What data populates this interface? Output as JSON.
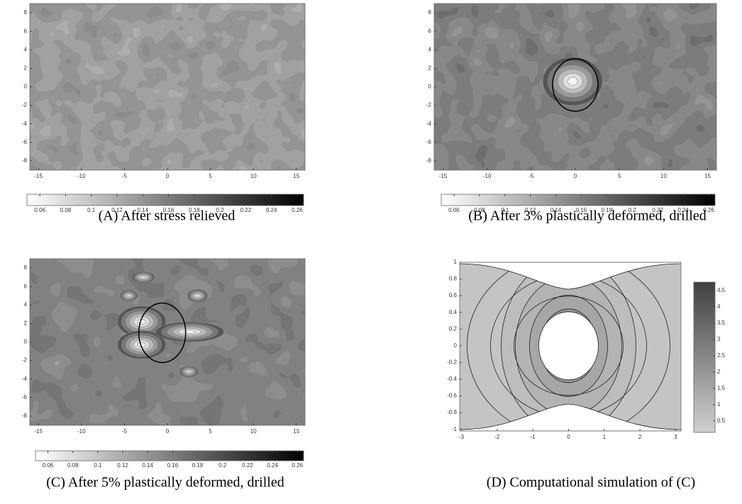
{
  "chart_data": [
    {
      "type": "contour",
      "title": "(A) After stress relieved",
      "xlim": [
        -16,
        16
      ],
      "ylim": [
        -9,
        9
      ],
      "xticks": [
        -15,
        -10,
        -5,
        0,
        5,
        10,
        15
      ],
      "yticks": [
        -8,
        -6,
        -4,
        -2,
        0,
        2,
        4,
        6,
        8
      ],
      "colorbar": {
        "orientation": "horizontal",
        "clim": [
          0.05,
          0.265
        ],
        "ticks": [
          0.06,
          0.08,
          0.1,
          0.12,
          0.14,
          0.16,
          0.18,
          0.2,
          0.22,
          0.24,
          0.26
        ]
      }
    },
    {
      "type": "contour",
      "title": "(B) After 3% plastically deformed, drilled",
      "xlim": [
        -16,
        16
      ],
      "ylim": [
        -9,
        9
      ],
      "xticks": [
        -15,
        -10,
        -5,
        0,
        5,
        10,
        15
      ],
      "yticks": [
        -8,
        -6,
        -4,
        -2,
        0,
        2,
        4,
        6,
        8
      ],
      "colorbar": {
        "orientation": "horizontal",
        "clim": [
          0.05,
          0.265
        ],
        "ticks": [
          0.06,
          0.08,
          0.1,
          0.12,
          0.14,
          0.16,
          0.18,
          0.2,
          0.22,
          0.24,
          0.26
        ]
      }
    },
    {
      "type": "contour",
      "title": "(C) After 5% plastically deformed, drilled",
      "xlim": [
        -16,
        16
      ],
      "ylim": [
        -9,
        9
      ],
      "xticks": [
        -15,
        -10,
        -5,
        0,
        5,
        10,
        15
      ],
      "yticks": [
        -8,
        -6,
        -4,
        -2,
        0,
        2,
        4,
        6,
        8
      ],
      "colorbar": {
        "orientation": "horizontal",
        "clim": [
          0.05,
          0.265
        ],
        "ticks": [
          0.06,
          0.08,
          0.1,
          0.12,
          0.14,
          0.16,
          0.18,
          0.2,
          0.22,
          0.24,
          0.26
        ]
      }
    },
    {
      "type": "contour",
      "title": "(D) Computational simulation of (C)",
      "xlim": [
        -3.05,
        3.15
      ],
      "ylim": [
        -1.02,
        1.0
      ],
      "xticks": [
        -3,
        -2,
        -1,
        0,
        1,
        2,
        3
      ],
      "yticks": [
        -1,
        -0.8,
        -0.6,
        -0.4,
        -0.2,
        0,
        0.2,
        0.4,
        0.6,
        0.8,
        1
      ],
      "colorbar": {
        "orientation": "vertical",
        "clim": [
          0.15,
          4.76
        ],
        "ticks": [
          0.5,
          1,
          1.5,
          2,
          2.5,
          3,
          3.5,
          4,
          4.5
        ]
      }
    }
  ]
}
